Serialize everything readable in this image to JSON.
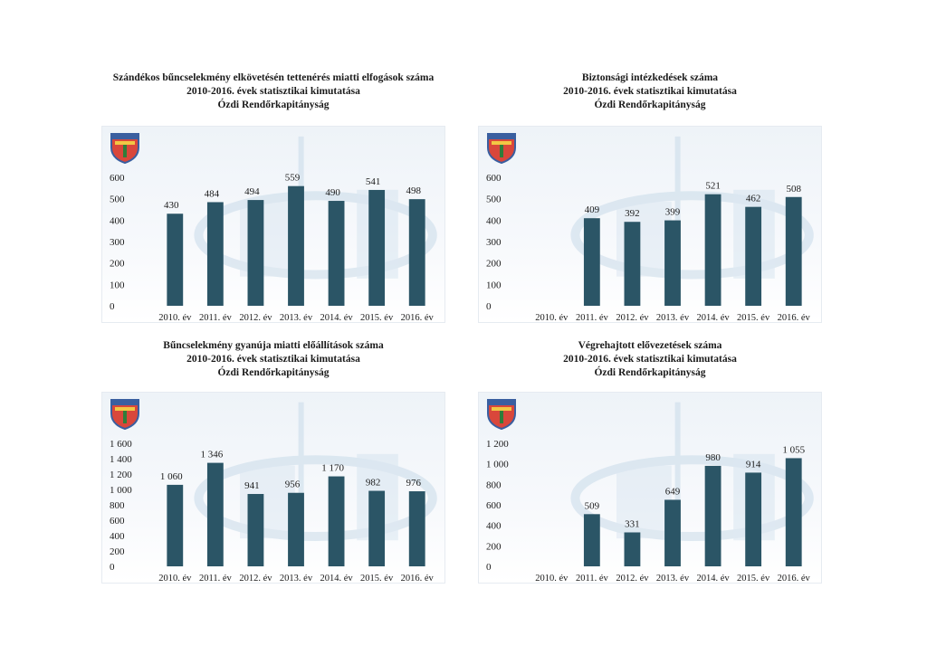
{
  "colors": {
    "bar": "#2b5566",
    "text": "#1a1a1a",
    "background_art": "#c9dbe9"
  },
  "chart_data": [
    {
      "type": "bar",
      "title": "Szándékos bűncselekmény elkövetésén tettenérés miatti elfogások száma",
      "subtitle": "2010-2016. évek statisztikai kimutatása",
      "subtitle2": "Ózdi Rendőrkapitányság",
      "categories": [
        "2010. év",
        "2011. év",
        "2012. év",
        "2013. év",
        "2014. év",
        "2015. év",
        "2016. év"
      ],
      "values": [
        430,
        484,
        494,
        559,
        490,
        541,
        498
      ],
      "value_labels": [
        "430",
        "484",
        "494",
        "559",
        "490",
        "541",
        "498"
      ],
      "ylim": [
        0,
        600
      ],
      "yticks": [
        0,
        100,
        200,
        300,
        400,
        500,
        600
      ],
      "ytick_labels": [
        "0",
        "100",
        "200",
        "300",
        "400",
        "500",
        "600"
      ],
      "grid": false,
      "legend": "none"
    },
    {
      "type": "bar",
      "title": "Biztonsági intézkedések száma",
      "subtitle": "2010-2016. évek statisztikai kimutatása",
      "subtitle2": "Ózdi Rendőrkapitányság",
      "categories": [
        "2010. év",
        "2011. év",
        "2012. év",
        "2013. év",
        "2014. év",
        "2015. év",
        "2016. év"
      ],
      "values": [
        null,
        409,
        392,
        399,
        521,
        462,
        508
      ],
      "value_labels": [
        "",
        "409",
        "392",
        "399",
        "521",
        "462",
        "508"
      ],
      "ylim": [
        0,
        600
      ],
      "yticks": [
        0,
        100,
        200,
        300,
        400,
        500,
        600
      ],
      "ytick_labels": [
        "0",
        "100",
        "200",
        "300",
        "400",
        "500",
        "600"
      ],
      "grid": false,
      "legend": "none"
    },
    {
      "type": "bar",
      "title": "Bűncselekmény gyanúja miatti előállítások száma",
      "subtitle": "2010-2016. évek statisztikai kimutatása",
      "subtitle2": "Ózdi Rendőrkapitányság",
      "categories": [
        "2010. év",
        "2011. év",
        "2012. év",
        "2013. év",
        "2014. év",
        "2015. év",
        "2016. év"
      ],
      "values": [
        1060,
        1346,
        941,
        956,
        1170,
        982,
        976
      ],
      "value_labels": [
        "1 060",
        "1 346",
        "941",
        "956",
        "1 170",
        "982",
        "976"
      ],
      "ylim": [
        0,
        1600
      ],
      "yticks": [
        0,
        200,
        400,
        600,
        800,
        1000,
        1200,
        1400,
        1600
      ],
      "ytick_labels": [
        "0",
        "200",
        "400",
        "600",
        "800",
        "1 000",
        "1 200",
        "1 400",
        "1 600"
      ],
      "grid": false,
      "legend": "none"
    },
    {
      "type": "bar",
      "title": "Végrehajtott elővezetések száma",
      "subtitle": "2010-2016. évek statisztikai kimutatása",
      "subtitle2": "Ózdi Rendőrkapitányság",
      "categories": [
        "2010. év",
        "2011. év",
        "2012. év",
        "2013. év",
        "2014. év",
        "2015. év",
        "2016. év"
      ],
      "values": [
        null,
        509,
        331,
        649,
        980,
        914,
        1055
      ],
      "value_labels": [
        "",
        "509",
        "331",
        "649",
        "980",
        "914",
        "1 055"
      ],
      "ylim": [
        0,
        1200
      ],
      "yticks": [
        0,
        200,
        400,
        600,
        800,
        1000,
        1200
      ],
      "ytick_labels": [
        "0",
        "200",
        "400",
        "600",
        "800",
        "1 000",
        "1 200"
      ],
      "grid": false,
      "legend": "none"
    }
  ]
}
